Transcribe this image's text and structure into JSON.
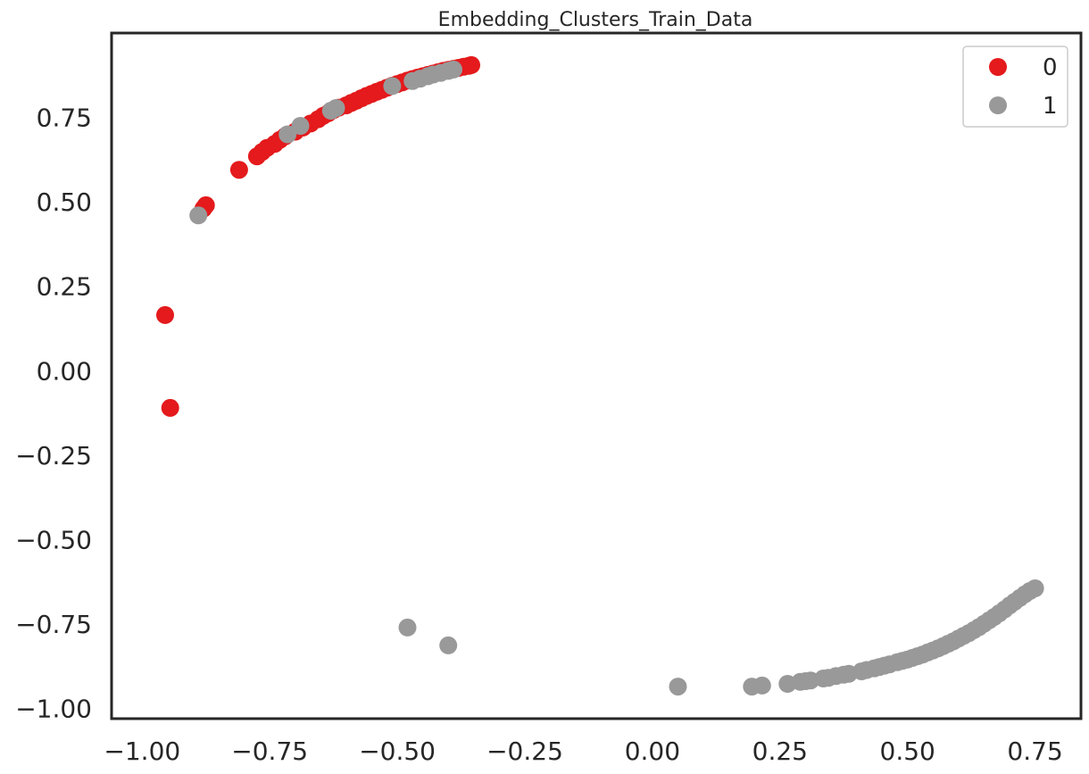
{
  "chart_data": {
    "type": "scatter",
    "title": "Embedding_Clusters_Train_Data",
    "xlabel": "",
    "ylabel": "",
    "xlim": [
      -1.06,
      0.84
    ],
    "ylim": [
      -1.03,
      1.0
    ],
    "xticks": [
      -1.0,
      -0.75,
      -0.5,
      -0.25,
      0.0,
      0.25,
      0.5,
      0.75
    ],
    "xtick_labels": [
      "−1.00",
      "−0.75",
      "−0.50",
      "−0.25",
      "0.00",
      "0.25",
      "0.50",
      "0.75"
    ],
    "yticks": [
      0.75,
      0.5,
      0.25,
      0.0,
      -0.25,
      -0.5,
      -0.75,
      -1.0
    ],
    "ytick_labels": [
      "0.75",
      "0.50",
      "0.25",
      "0.00",
      "−0.25",
      "−0.50",
      "−0.75",
      "−1.00"
    ],
    "grid": false,
    "legend": {
      "position": "top-right",
      "entries": [
        "0",
        "1"
      ]
    },
    "series": [
      {
        "name": "0",
        "color": "#e41a1c",
        "points": [
          [
            -0.955,
            0.165
          ],
          [
            -0.945,
            -0.11
          ],
          [
            -0.875,
            0.49
          ],
          [
            -0.88,
            0.48
          ],
          [
            -0.81,
            0.595
          ],
          [
            -0.775,
            0.635
          ],
          [
            -0.765,
            0.648
          ],
          [
            -0.755,
            0.66
          ],
          [
            -0.74,
            0.672
          ],
          [
            -0.73,
            0.684
          ],
          [
            -0.72,
            0.694
          ],
          [
            -0.7,
            0.708
          ],
          [
            -0.685,
            0.72
          ],
          [
            -0.67,
            0.732
          ],
          [
            -0.655,
            0.745
          ],
          [
            -0.645,
            0.755
          ],
          [
            -0.635,
            0.763
          ],
          [
            -0.625,
            0.772
          ],
          [
            -0.615,
            0.779
          ],
          [
            -0.6,
            0.786
          ],
          [
            -0.59,
            0.793
          ],
          [
            -0.58,
            0.8
          ],
          [
            -0.57,
            0.807
          ],
          [
            -0.56,
            0.814
          ],
          [
            -0.55,
            0.82
          ],
          [
            -0.54,
            0.826
          ],
          [
            -0.53,
            0.832
          ],
          [
            -0.52,
            0.838
          ],
          [
            -0.51,
            0.844
          ],
          [
            -0.5,
            0.849
          ],
          [
            -0.49,
            0.854
          ],
          [
            -0.48,
            0.859
          ],
          [
            -0.47,
            0.864
          ],
          [
            -0.46,
            0.868
          ],
          [
            -0.45,
            0.872
          ],
          [
            -0.44,
            0.876
          ],
          [
            -0.43,
            0.88
          ],
          [
            -0.42,
            0.884
          ],
          [
            -0.41,
            0.888
          ],
          [
            -0.4,
            0.891
          ],
          [
            -0.39,
            0.894
          ],
          [
            -0.38,
            0.897
          ],
          [
            -0.37,
            0.9
          ],
          [
            -0.36,
            0.903
          ],
          [
            -0.355,
            0.905
          ]
        ]
      },
      {
        "name": "1",
        "color": "#999999",
        "points": [
          [
            -0.89,
            0.46
          ],
          [
            -0.715,
            0.7
          ],
          [
            -0.69,
            0.725
          ],
          [
            -0.63,
            0.77
          ],
          [
            -0.62,
            0.778
          ],
          [
            -0.51,
            0.843
          ],
          [
            -0.47,
            0.858
          ],
          [
            -0.455,
            0.865
          ],
          [
            -0.44,
            0.872
          ],
          [
            -0.43,
            0.877
          ],
          [
            -0.415,
            0.882
          ],
          [
            -0.4,
            0.888
          ],
          [
            -0.39,
            0.892
          ],
          [
            -0.48,
            -0.76
          ],
          [
            -0.4,
            -0.813
          ],
          [
            0.05,
            -0.935
          ],
          [
            0.195,
            -0.935
          ],
          [
            0.215,
            -0.932
          ],
          [
            0.265,
            -0.927
          ],
          [
            0.29,
            -0.921
          ],
          [
            0.3,
            -0.919
          ],
          [
            0.31,
            -0.917
          ],
          [
            0.335,
            -0.911
          ],
          [
            0.345,
            -0.909
          ],
          [
            0.36,
            -0.904
          ],
          [
            0.375,
            -0.9
          ],
          [
            0.385,
            -0.897
          ],
          [
            0.41,
            -0.89
          ],
          [
            0.42,
            -0.886
          ],
          [
            0.435,
            -0.881
          ],
          [
            0.445,
            -0.877
          ],
          [
            0.455,
            -0.873
          ],
          [
            0.465,
            -0.869
          ],
          [
            0.48,
            -0.863
          ],
          [
            0.49,
            -0.859
          ],
          [
            0.5,
            -0.855
          ],
          [
            0.51,
            -0.85
          ],
          [
            0.52,
            -0.845
          ],
          [
            0.53,
            -0.84
          ],
          [
            0.54,
            -0.834
          ],
          [
            0.55,
            -0.828
          ],
          [
            0.56,
            -0.822
          ],
          [
            0.57,
            -0.815
          ],
          [
            0.58,
            -0.808
          ],
          [
            0.59,
            -0.801
          ],
          [
            0.6,
            -0.793
          ],
          [
            0.61,
            -0.785
          ],
          [
            0.62,
            -0.777
          ],
          [
            0.63,
            -0.768
          ],
          [
            0.64,
            -0.759
          ],
          [
            0.65,
            -0.749
          ],
          [
            0.66,
            -0.739
          ],
          [
            0.67,
            -0.729
          ],
          [
            0.68,
            -0.718
          ],
          [
            0.69,
            -0.707
          ],
          [
            0.7,
            -0.695
          ],
          [
            0.71,
            -0.684
          ],
          [
            0.72,
            -0.673
          ],
          [
            0.73,
            -0.662
          ],
          [
            0.74,
            -0.652
          ],
          [
            0.75,
            -0.644
          ]
        ]
      }
    ]
  }
}
